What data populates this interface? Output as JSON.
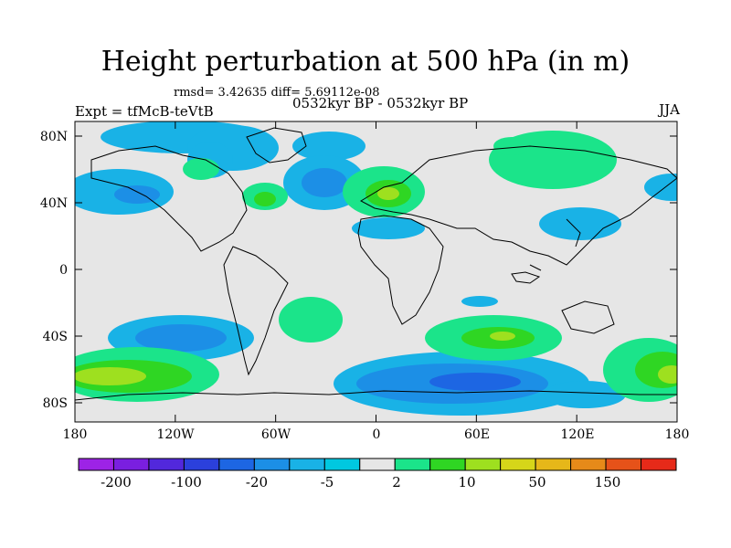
{
  "title": "Height perturbation at 500 hPa (in m)",
  "stats": "rmsd= 3.42635 diff= 5.69112e-08",
  "period": "0532kyr BP - 0532kyr BP",
  "experiment": "Expt = tfMcB-teVtB",
  "season": "JJA",
  "map": {
    "background": "#e6e6e6",
    "lat_labels": [
      "80N",
      "40N",
      "0",
      "40S",
      "80S"
    ],
    "lon_labels": [
      "180",
      "120W",
      "60W",
      "0",
      "60E",
      "120E",
      "180"
    ]
  },
  "colorbar": {
    "colors": [
      "#9d23e6",
      "#7a1fe0",
      "#5228dc",
      "#2b40dc",
      "#1d66e3",
      "#1c8fe6",
      "#19b2e6",
      "#00c8e0",
      "#e6e6e6",
      "#1be48a",
      "#2fd623",
      "#9ee01f",
      "#d6d619",
      "#e6b719",
      "#e68a19",
      "#e65219",
      "#e62a19"
    ],
    "labels": [
      "-200",
      "-100",
      "-20",
      "-5",
      "2",
      "10",
      "50",
      "150"
    ]
  }
}
